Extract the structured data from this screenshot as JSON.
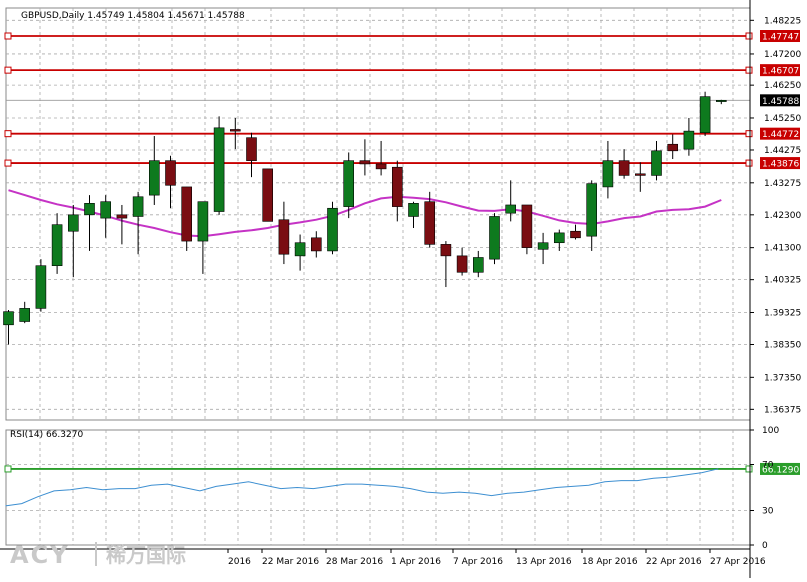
{
  "header": {
    "symbol_line": "GBPUSD,Daily  1.45749 1.45804 1.45671 1.45788"
  },
  "rsi_label": "RSI(14) 66.3270",
  "logo": {
    "brand": "ACY",
    "chinese": "稀万国际"
  },
  "colors": {
    "bull": "#0e7a1e",
    "bear": "#7a0d12",
    "ma": "#c533c5",
    "rsi_line": "#3d8fd1",
    "hline": "#c80000",
    "rsi_hline": "#2a9d2a",
    "grid": "#aaaaaa",
    "current_tag": "#000000"
  },
  "chart_data": [
    {
      "type": "candlestick",
      "title": "GBPUSD,Daily",
      "ohlc_header": {
        "open": 1.45749,
        "high": 1.45804,
        "low": 1.45671,
        "close": 1.45788
      },
      "ylim": [
        1.3605,
        1.486
      ],
      "y_ticks": [
        "1.48225",
        "1.47200",
        "1.46250",
        "1.45250",
        "1.44275",
        "1.43275",
        "1.42300",
        "1.41300",
        "1.40325",
        "1.39325",
        "1.38350",
        "1.37350",
        "1.36375"
      ],
      "x_ticks": [
        "2016",
        "22 Mar 2016",
        "28 Mar 2016",
        "1 Apr 2016",
        "7 Apr 2016",
        "13 Apr 2016",
        "18 Apr 2016",
        "22 Apr 2016",
        "27 Apr 2016"
      ],
      "price_lines": [
        {
          "value": 1.47747,
          "label": "1.47747"
        },
        {
          "value": 1.46707,
          "label": "1.46707"
        },
        {
          "value": 1.44772,
          "label": "1.44772"
        },
        {
          "value": 1.43876,
          "label": "1.43876"
        }
      ],
      "current_price": {
        "value": 1.45788,
        "label": "1.45788"
      },
      "candles": [
        {
          "o": 1.3895,
          "h": 1.394,
          "l": 1.3835,
          "c": 1.3935
        },
        {
          "o": 1.3905,
          "h": 1.3965,
          "l": 1.39,
          "c": 1.3945
        },
        {
          "o": 1.3945,
          "h": 1.4095,
          "l": 1.3935,
          "c": 1.4075
        },
        {
          "o": 1.4075,
          "h": 1.4235,
          "l": 1.405,
          "c": 1.42
        },
        {
          "o": 1.418,
          "h": 1.426,
          "l": 1.404,
          "c": 1.423
        },
        {
          "o": 1.423,
          "h": 1.429,
          "l": 1.412,
          "c": 1.4265
        },
        {
          "o": 1.422,
          "h": 1.429,
          "l": 1.416,
          "c": 1.427
        },
        {
          "o": 1.423,
          "h": 1.426,
          "l": 1.414,
          "c": 1.422
        },
        {
          "o": 1.4225,
          "h": 1.43,
          "l": 1.411,
          "c": 1.4285
        },
        {
          "o": 1.429,
          "h": 1.447,
          "l": 1.426,
          "c": 1.4395
        },
        {
          "o": 1.4395,
          "h": 1.441,
          "l": 1.425,
          "c": 1.432
        },
        {
          "o": 1.4315,
          "h": 1.4315,
          "l": 1.412,
          "c": 1.415
        },
        {
          "o": 1.415,
          "h": 1.427,
          "l": 1.405,
          "c": 1.427
        },
        {
          "o": 1.424,
          "h": 1.453,
          "l": 1.423,
          "c": 1.4495
        },
        {
          "o": 1.449,
          "h": 1.4525,
          "l": 1.443,
          "c": 1.4485
        },
        {
          "o": 1.4465,
          "h": 1.448,
          "l": 1.4345,
          "c": 1.4395
        },
        {
          "o": 1.437,
          "h": 1.437,
          "l": 1.421,
          "c": 1.421
        },
        {
          "o": 1.4215,
          "h": 1.427,
          "l": 1.408,
          "c": 1.411
        },
        {
          "o": 1.4105,
          "h": 1.417,
          "l": 1.406,
          "c": 1.4145
        },
        {
          "o": 1.416,
          "h": 1.418,
          "l": 1.41,
          "c": 1.412
        },
        {
          "o": 1.412,
          "h": 1.427,
          "l": 1.411,
          "c": 1.425
        },
        {
          "o": 1.4255,
          "h": 1.442,
          "l": 1.422,
          "c": 1.4395
        },
        {
          "o": 1.4395,
          "h": 1.446,
          "l": 1.435,
          "c": 1.4385
        },
        {
          "o": 1.4385,
          "h": 1.4455,
          "l": 1.435,
          "c": 1.437
        },
        {
          "o": 1.4375,
          "h": 1.4395,
          "l": 1.421,
          "c": 1.4255
        },
        {
          "o": 1.4225,
          "h": 1.427,
          "l": 1.419,
          "c": 1.4265
        },
        {
          "o": 1.427,
          "h": 1.43,
          "l": 1.413,
          "c": 1.414
        },
        {
          "o": 1.414,
          "h": 1.415,
          "l": 1.401,
          "c": 1.4105
        },
        {
          "o": 1.4105,
          "h": 1.413,
          "l": 1.4045,
          "c": 1.4055
        },
        {
          "o": 1.4055,
          "h": 1.412,
          "l": 1.404,
          "c": 1.41
        },
        {
          "o": 1.4095,
          "h": 1.4235,
          "l": 1.408,
          "c": 1.4225
        },
        {
          "o": 1.4235,
          "h": 1.4335,
          "l": 1.421,
          "c": 1.426
        },
        {
          "o": 1.426,
          "h": 1.426,
          "l": 1.411,
          "c": 1.413
        },
        {
          "o": 1.4125,
          "h": 1.4175,
          "l": 1.408,
          "c": 1.4145
        },
        {
          "o": 1.4145,
          "h": 1.4185,
          "l": 1.412,
          "c": 1.4175
        },
        {
          "o": 1.418,
          "h": 1.42,
          "l": 1.4155,
          "c": 1.416
        },
        {
          "o": 1.4165,
          "h": 1.4335,
          "l": 1.412,
          "c": 1.4325
        },
        {
          "o": 1.4315,
          "h": 1.4455,
          "l": 1.428,
          "c": 1.4395
        },
        {
          "o": 1.4395,
          "h": 1.443,
          "l": 1.434,
          "c": 1.435
        },
        {
          "o": 1.4355,
          "h": 1.439,
          "l": 1.43,
          "c": 1.435
        },
        {
          "o": 1.435,
          "h": 1.4455,
          "l": 1.4335,
          "c": 1.4425
        },
        {
          "o": 1.4445,
          "h": 1.4475,
          "l": 1.44,
          "c": 1.4425
        },
        {
          "o": 1.443,
          "h": 1.4525,
          "l": 1.441,
          "c": 1.4485
        },
        {
          "o": 1.448,
          "h": 1.4605,
          "l": 1.447,
          "c": 1.459
        },
        {
          "o": 1.45749,
          "h": 1.45804,
          "l": 1.45671,
          "c": 1.45788
        }
      ],
      "moving_average": [
        1.4305,
        1.429,
        1.4275,
        1.4262,
        1.4252,
        1.424,
        1.4227,
        1.4212,
        1.42,
        1.419,
        1.4177,
        1.4167,
        1.4165,
        1.4171,
        1.4178,
        1.4183,
        1.419,
        1.42,
        1.4207,
        1.4215,
        1.4227,
        1.4245,
        1.4265,
        1.428,
        1.4285,
        1.4282,
        1.4278,
        1.4268,
        1.4255,
        1.4243,
        1.4242,
        1.4247,
        1.424,
        1.4227,
        1.4213,
        1.4205,
        1.4202,
        1.421,
        1.422,
        1.4225,
        1.424,
        1.4245,
        1.4247,
        1.4255,
        1.4275
      ]
    },
    {
      "type": "line",
      "title": "RSI(14) 66.3270",
      "ylim": [
        0,
        100
      ],
      "y_ticks": [
        "100",
        "70",
        "30",
        "0"
      ],
      "level_line": {
        "value": 66.129,
        "label": "66.1290"
      },
      "values": [
        34,
        36,
        42,
        47,
        48,
        50,
        48,
        49,
        49,
        52,
        53,
        50,
        47,
        51,
        53,
        55,
        52,
        49,
        50,
        49,
        51,
        53,
        53,
        52,
        51,
        49,
        46,
        45,
        46,
        45,
        43,
        45,
        46,
        48,
        50,
        51,
        52,
        55,
        56,
        56,
        58,
        59,
        61,
        63,
        66.3
      ]
    }
  ]
}
